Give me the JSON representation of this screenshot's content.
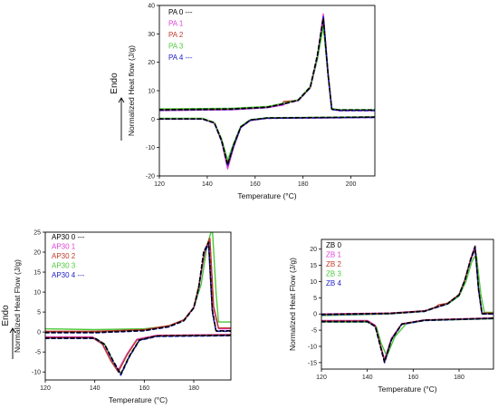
{
  "chart_data": [
    {
      "type": "line",
      "xlabel": "Temperature (°C)",
      "ylabel": "Normalized Heat flow (J/g)",
      "endo_label": "Endo",
      "xlim": [
        120,
        210
      ],
      "ylim": [
        -20,
        40
      ],
      "xticks": [
        120,
        140,
        160,
        180,
        200
      ],
      "yticks": [
        -20,
        -10,
        0,
        10,
        20,
        30,
        40
      ],
      "legend": [
        {
          "name": "PA 0 ---",
          "color": "#000000"
        },
        {
          "name": "PA 1",
          "color": "#e040d8"
        },
        {
          "name": "PA 2",
          "color": "#c0392b"
        },
        {
          "name": "PA 3",
          "color": "#4cc83a"
        },
        {
          "name": "PA 4 ---",
          "color": "#2020c8"
        }
      ],
      "series": [
        {
          "color": "#e040d8",
          "dash": false,
          "kind": "heat",
          "x": [
            120,
            150,
            165,
            172,
            173,
            178,
            183,
            186,
            188.5,
            190.5,
            192,
            195,
            210
          ],
          "y": [
            3,
            3.3,
            4,
            5,
            5.8,
            6.5,
            11,
            22,
            37,
            16,
            3.5,
            3,
            3
          ]
        },
        {
          "color": "#e040d8",
          "dash": false,
          "kind": "cool",
          "x": [
            120,
            138,
            143,
            146,
            148.5,
            151,
            154,
            158,
            165,
            210
          ],
          "y": [
            0,
            0,
            -1.5,
            -8,
            -17.5,
            -10,
            -3,
            -0.5,
            0.3,
            0.6
          ]
        },
        {
          "color": "#c0392b",
          "dash": false,
          "kind": "heat",
          "x": [
            120,
            150,
            165,
            171,
            172,
            178,
            183,
            186,
            188.5,
            190.5,
            192,
            195,
            210
          ],
          "y": [
            3.2,
            3.5,
            4.2,
            5.2,
            6.2,
            6.6,
            11,
            21,
            34,
            16,
            3.6,
            3.1,
            3.1
          ]
        },
        {
          "color": "#c0392b",
          "dash": false,
          "kind": "cool",
          "x": [
            120,
            138,
            143,
            146,
            148.5,
            151,
            154,
            158,
            165,
            210
          ],
          "y": [
            0.2,
            0.2,
            -1.3,
            -7.5,
            -15.5,
            -9,
            -2.8,
            -0.3,
            0.4,
            0.7
          ]
        },
        {
          "color": "#4cc83a",
          "dash": false,
          "kind": "heat",
          "x": [
            120,
            150,
            165,
            172,
            178,
            183,
            186,
            188.5,
            190.5,
            192,
            195,
            210
          ],
          "y": [
            3.6,
            3.8,
            4.4,
            5.6,
            6.8,
            11.5,
            21,
            32.5,
            15,
            3.8,
            3.3,
            3.3
          ]
        },
        {
          "color": "#4cc83a",
          "dash": false,
          "kind": "cool",
          "x": [
            120,
            138,
            143,
            146,
            148.5,
            151,
            154,
            158,
            165,
            210
          ],
          "y": [
            0.3,
            0.3,
            -1.2,
            -7,
            -14.5,
            -8.5,
            -2.5,
            -0.2,
            0.5,
            0.8
          ]
        },
        {
          "color": "#2020c8",
          "dash": true,
          "kind": "heat",
          "x": [
            120,
            150,
            165,
            172,
            178,
            183,
            186,
            188.5,
            190.5,
            192,
            195,
            210
          ],
          "y": [
            3.1,
            3.4,
            4.1,
            5.3,
            6.6,
            11,
            22,
            36,
            15.5,
            3.4,
            3,
            3
          ]
        },
        {
          "color": "#2020c8",
          "dash": true,
          "kind": "cool",
          "x": [
            120,
            138,
            143,
            146,
            148.5,
            151,
            154,
            158,
            165,
            210
          ],
          "y": [
            0,
            0,
            -1.4,
            -7.8,
            -16.5,
            -9.5,
            -2.9,
            -0.4,
            0.3,
            0.6
          ]
        },
        {
          "color": "#000000",
          "dash": true,
          "kind": "heat",
          "x": [
            120,
            150,
            165,
            172,
            178,
            183,
            186,
            188.5,
            190.5,
            192,
            195,
            210
          ],
          "y": [
            3.3,
            3.6,
            4.2,
            5.4,
            6.7,
            11.2,
            22.5,
            35.5,
            15.5,
            3.5,
            3.2,
            3.2
          ]
        },
        {
          "color": "#000000",
          "dash": true,
          "kind": "cool",
          "x": [
            120,
            138,
            143,
            146,
            148.5,
            151,
            154,
            158,
            165,
            210
          ],
          "y": [
            0.1,
            0.1,
            -1.3,
            -7.5,
            -16,
            -9.2,
            -2.8,
            -0.3,
            0.4,
            0.7
          ]
        }
      ]
    },
    {
      "type": "line",
      "xlabel": "Temperature (°C)",
      "ylabel": "Normalized Heat Flow (J/g)",
      "endo_label": "Endo",
      "xlim": [
        120,
        195
      ],
      "ylim": [
        -12,
        25
      ],
      "xticks": [
        120,
        140,
        160,
        180
      ],
      "yticks": [
        -10,
        -5,
        0,
        5,
        10,
        15,
        20,
        25
      ],
      "legend": [
        {
          "name": "AP30 0 ---",
          "color": "#000000"
        },
        {
          "name": "AP30 1",
          "color": "#e040d8"
        },
        {
          "name": "AP30 2",
          "color": "#c0392b"
        },
        {
          "name": "AP30 3",
          "color": "#4cc83a"
        },
        {
          "name": "AP30 4 ---",
          "color": "#2020c8"
        }
      ],
      "series": [
        {
          "color": "#4cc83a",
          "dash": false,
          "kind": "heat",
          "x": [
            120,
            140,
            160,
            170,
            176,
            180,
            183,
            185.5,
            187.5,
            189,
            190,
            195
          ],
          "y": [
            0.8,
            0.6,
            0.8,
            1.5,
            3,
            6,
            12,
            22,
            26,
            10,
            2.5,
            2.5
          ]
        },
        {
          "color": "#4cc83a",
          "dash": false,
          "kind": "cool",
          "x": [
            120,
            140,
            144,
            147,
            150.5,
            154,
            158,
            165,
            195
          ],
          "y": [
            -1.5,
            -1.5,
            -3,
            -7,
            -10.5,
            -6,
            -2,
            -1,
            -0.8
          ]
        },
        {
          "color": "#e040d8",
          "dash": false,
          "kind": "heat",
          "x": [
            120,
            140,
            160,
            170,
            176,
            180,
            182,
            184.5,
            186.5,
            188,
            190,
            195
          ],
          "y": [
            0,
            0,
            0.5,
            1.5,
            3,
            6,
            11,
            20,
            23,
            6,
            0.8,
            0.8
          ]
        },
        {
          "color": "#e040d8",
          "dash": false,
          "kind": "cool",
          "x": [
            120,
            139,
            143,
            146.5,
            149.5,
            153,
            157,
            165,
            195
          ],
          "y": [
            -1.2,
            -1.2,
            -2.8,
            -7,
            -9.5,
            -5.5,
            -1.8,
            -0.8,
            -0.6
          ]
        },
        {
          "color": "#c0392b",
          "dash": false,
          "kind": "heat",
          "x": [
            120,
            140,
            160,
            170,
            176,
            180,
            182,
            184.5,
            186.5,
            188,
            190,
            195
          ],
          "y": [
            0.2,
            0.2,
            0.6,
            1.6,
            3.1,
            6.2,
            11.5,
            20.5,
            23.5,
            6.5,
            1,
            1
          ]
        },
        {
          "color": "#c0392b",
          "dash": false,
          "kind": "cool",
          "x": [
            120,
            139,
            143,
            146.5,
            149.5,
            153,
            157,
            165,
            195
          ],
          "y": [
            -1.4,
            -1.4,
            -3,
            -7.2,
            -10,
            -5.8,
            -2,
            -0.9,
            -0.7
          ]
        },
        {
          "color": "#2020c8",
          "dash": true,
          "kind": "heat",
          "x": [
            120,
            140,
            160,
            170,
            176,
            180,
            182,
            184,
            186,
            187.5,
            189,
            195
          ],
          "y": [
            -0.2,
            -0.2,
            0.3,
            1.3,
            2.8,
            6,
            11,
            19.5,
            22,
            5,
            0.2,
            0.2
          ]
        },
        {
          "color": "#2020c8",
          "dash": true,
          "kind": "cool",
          "x": [
            120,
            140,
            144,
            147.5,
            150.5,
            154,
            158,
            165,
            195
          ],
          "y": [
            -1.6,
            -1.6,
            -3.2,
            -7.5,
            -10.8,
            -6.2,
            -2.1,
            -1.1,
            -0.9
          ]
        },
        {
          "color": "#000000",
          "dash": true,
          "kind": "heat",
          "x": [
            120,
            140,
            160,
            170,
            176,
            180,
            182,
            184,
            186,
            187.5,
            189,
            195
          ],
          "y": [
            -0.1,
            -0.1,
            0.4,
            1.4,
            2.9,
            6.1,
            11.2,
            20,
            22.5,
            5.5,
            0.3,
            0.3
          ]
        },
        {
          "color": "#000000",
          "dash": true,
          "kind": "cool",
          "x": [
            120,
            140,
            144,
            147.5,
            150.5,
            154,
            158,
            165,
            195
          ],
          "y": [
            -1.5,
            -1.5,
            -3.1,
            -7.3,
            -10.5,
            -6,
            -2,
            -1,
            -0.8
          ]
        }
      ]
    },
    {
      "type": "line",
      "xlabel": "Temperature (°C)",
      "ylabel": "Normalized Heat Flow (J/g)",
      "xlim": [
        120,
        195
      ],
      "ylim": [
        -17,
        23
      ],
      "xticks": [
        120,
        140,
        160,
        180
      ],
      "yticks": [
        -15,
        -10,
        -5,
        0,
        5,
        10,
        15,
        20
      ],
      "legend": [
        {
          "name": "ZB 0",
          "color": "#000000"
        },
        {
          "name": "ZB 1",
          "color": "#e040d8"
        },
        {
          "name": "ZB 2",
          "color": "#c0392b"
        },
        {
          "name": "ZB 3",
          "color": "#4cc83a"
        },
        {
          "name": "ZB 4",
          "color": "#2020c8"
        }
      ],
      "series": [
        {
          "color": "#4cc83a",
          "dash": false,
          "kind": "heat",
          "x": [
            120,
            150,
            165,
            170,
            175,
            180,
            183,
            185.5,
            187.5,
            189.5,
            191,
            195
          ],
          "y": [
            -0.5,
            0,
            0.8,
            2,
            3,
            5.5,
            10,
            16,
            18.5,
            6,
            0.5,
            0.5
          ]
        },
        {
          "color": "#4cc83a",
          "dash": false,
          "kind": "cool",
          "x": [
            120,
            140,
            144,
            146,
            148.5,
            152,
            157,
            165,
            195
          ],
          "y": [
            -2.5,
            -2.5,
            -4,
            -9,
            -13,
            -7,
            -3,
            -2,
            -1.5
          ]
        },
        {
          "color": "#e040d8",
          "dash": false,
          "kind": "heat",
          "x": [
            120,
            150,
            165,
            170,
            175,
            180,
            182.5,
            185,
            187,
            188.5,
            190,
            195
          ],
          "y": [
            0,
            0.3,
            1,
            2,
            3.2,
            6,
            10.5,
            17,
            21,
            8,
            0.2,
            0.2
          ]
        },
        {
          "color": "#e040d8",
          "dash": false,
          "kind": "cool",
          "x": [
            120,
            140,
            143.5,
            145.5,
            147.5,
            150.5,
            155,
            165,
            195
          ],
          "y": [
            -2,
            -2,
            -3.5,
            -9,
            -14,
            -7.5,
            -3,
            -1.8,
            -1.2
          ]
        },
        {
          "color": "#c0392b",
          "dash": false,
          "kind": "heat",
          "x": [
            120,
            150,
            165,
            170,
            171,
            175,
            180,
            182.5,
            185,
            187,
            188.5,
            190,
            195
          ],
          "y": [
            -0.2,
            0.2,
            0.9,
            2.2,
            2.8,
            3.3,
            6,
            10.5,
            16.5,
            20,
            7.5,
            0.3,
            0.3
          ]
        },
        {
          "color": "#c0392b",
          "dash": false,
          "kind": "cool",
          "x": [
            120,
            140,
            143.5,
            145.5,
            147.5,
            150.5,
            155,
            165,
            195
          ],
          "y": [
            -2.2,
            -2.2,
            -3.7,
            -9.2,
            -14.5,
            -7.8,
            -3.1,
            -1.9,
            -1.3
          ]
        },
        {
          "color": "#2020c8",
          "dash": true,
          "kind": "heat",
          "x": [
            120,
            150,
            165,
            170,
            175,
            180,
            182.5,
            185,
            187,
            188.5,
            190,
            195
          ],
          "y": [
            -0.3,
            0.1,
            0.8,
            2,
            3.1,
            5.8,
            10.2,
            16.5,
            20.5,
            7.5,
            0,
            0
          ]
        },
        {
          "color": "#2020c8",
          "dash": true,
          "kind": "cool",
          "x": [
            120,
            140,
            143.5,
            145.5,
            147.5,
            150.5,
            155,
            165,
            195
          ],
          "y": [
            -2.4,
            -2.4,
            -3.9,
            -9.5,
            -15,
            -8,
            -3.2,
            -2,
            -1.4
          ]
        },
        {
          "color": "#000000",
          "dash": true,
          "kind": "heat",
          "x": [
            120,
            150,
            165,
            170,
            175,
            180,
            182.5,
            185,
            187,
            188.5,
            190,
            195
          ],
          "y": [
            -0.1,
            0.2,
            0.9,
            2.1,
            3.2,
            5.9,
            10.3,
            16.8,
            20.8,
            7.8,
            0.1,
            0.1
          ]
        },
        {
          "color": "#000000",
          "dash": true,
          "kind": "cool",
          "x": [
            120,
            140,
            143.5,
            145.5,
            147.5,
            150.5,
            155,
            165,
            195
          ],
          "y": [
            -2.3,
            -2.3,
            -3.8,
            -9.3,
            -14.8,
            -7.9,
            -3.1,
            -1.9,
            -1.3
          ]
        }
      ]
    }
  ]
}
